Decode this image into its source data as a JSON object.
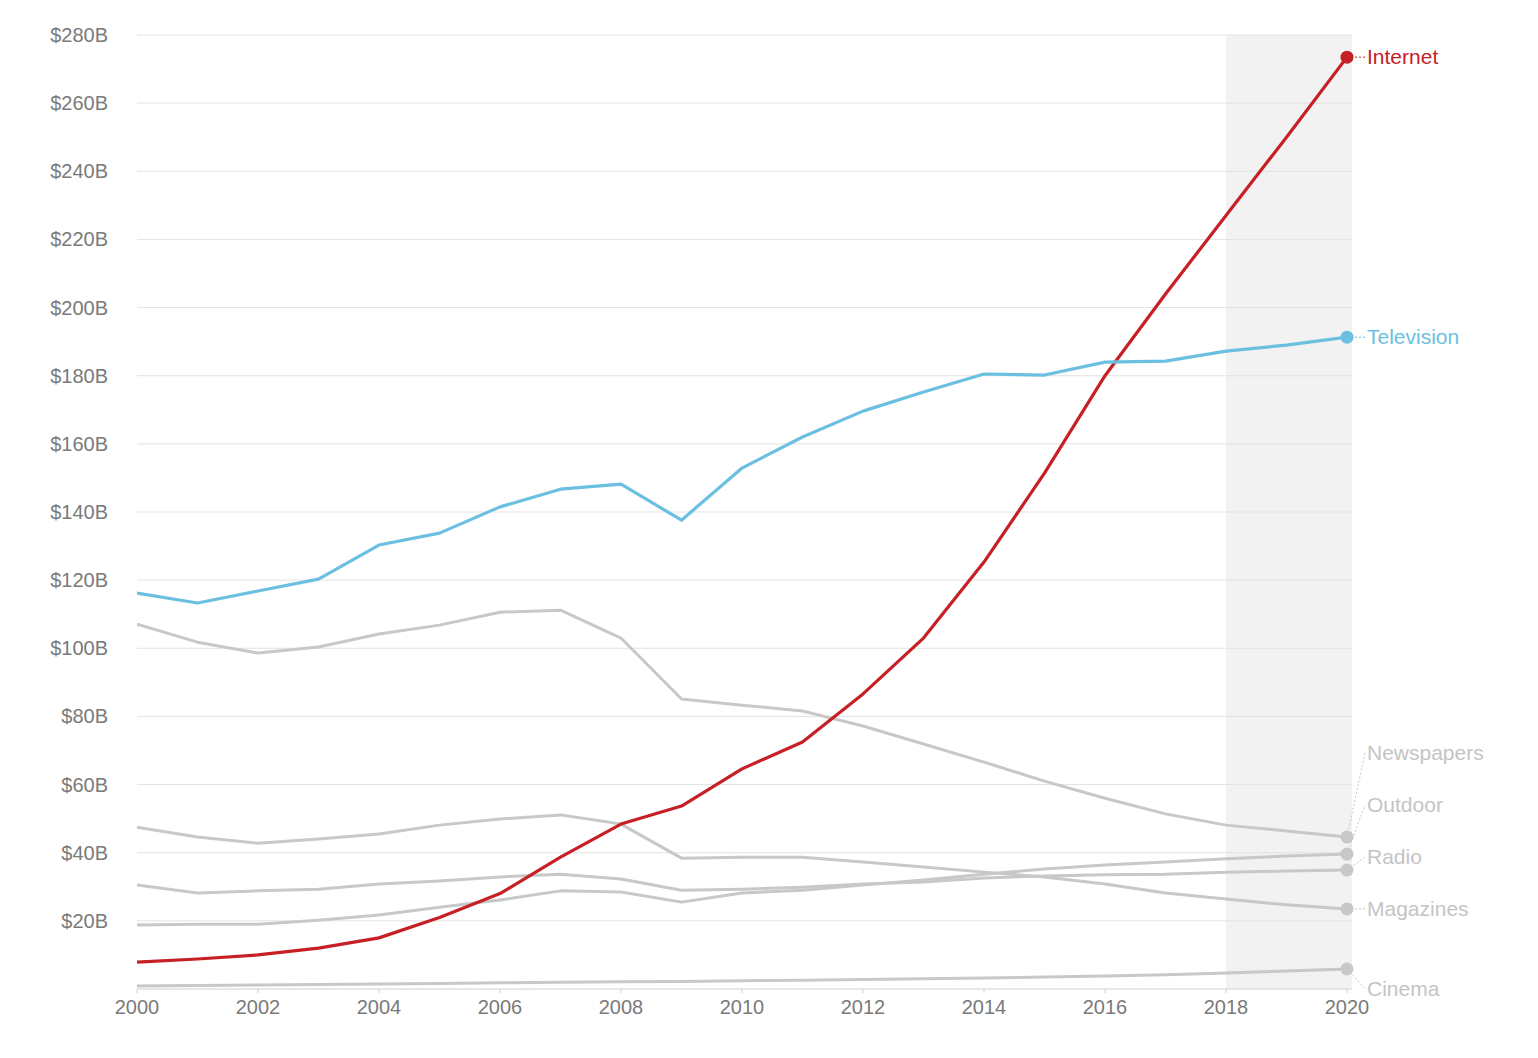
{
  "chart_data": {
    "type": "line",
    "x": [
      2000,
      2001,
      2002,
      2003,
      2004,
      2005,
      2006,
      2007,
      2008,
      2009,
      2010,
      2011,
      2012,
      2013,
      2014,
      2015,
      2016,
      2017,
      2018,
      2019,
      2020
    ],
    "xlim": [
      2000,
      2020
    ],
    "xticks": [
      2000,
      2002,
      2004,
      2006,
      2008,
      2010,
      2012,
      2014,
      2016,
      2018,
      2020
    ],
    "ylim": [
      0,
      280
    ],
    "yticks": [
      {
        "value": 20,
        "label": "$20B"
      },
      {
        "value": 40,
        "label": "$40B"
      },
      {
        "value": 60,
        "label": "$60B"
      },
      {
        "value": 80,
        "label": "$80B"
      },
      {
        "value": 100,
        "label": "$100B"
      },
      {
        "value": 120,
        "label": "$120B"
      },
      {
        "value": 140,
        "label": "$140B"
      },
      {
        "value": 160,
        "label": "$160B"
      },
      {
        "value": 180,
        "label": "$180B"
      },
      {
        "value": 200,
        "label": "$200B"
      },
      {
        "value": 220,
        "label": "$220B"
      },
      {
        "value": 240,
        "label": "$240B"
      },
      {
        "value": 260,
        "label": "$260B"
      },
      {
        "value": 280,
        "label": "$280B"
      }
    ],
    "grid": true,
    "shaded_x": [
      2018,
      2020
    ],
    "series": [
      {
        "name": "Internet",
        "color": "#c62026",
        "values": [
          7.9,
          8.8,
          10,
          12,
          15,
          21,
          28,
          38.7,
          48.4,
          53.7,
          64.6,
          72.5,
          86.6,
          103,
          125.3,
          151.4,
          180,
          204,
          227,
          250,
          273.5
        ]
      },
      {
        "name": "Television",
        "color": "#6bbfe0",
        "values": [
          116.2,
          113.3,
          116.8,
          120.3,
          130.3,
          133.8,
          141.5,
          146.7,
          148.2,
          137.6,
          152.9,
          162,
          169.6,
          175.2,
          180.5,
          180.2,
          184,
          184.3,
          187.2,
          189,
          191.3
        ]
      },
      {
        "name": "Newspapers",
        "color": "#c8c8c8",
        "values": [
          107.1,
          101.8,
          98.6,
          100.4,
          104.2,
          106.8,
          110.6,
          111.2,
          103,
          85.1,
          83.3,
          81.6,
          77.2,
          71.9,
          66.6,
          61,
          56,
          51.4,
          48.1,
          46.4,
          44.6
        ]
      },
      {
        "name": "Outdoor",
        "color": "#c8c8c8",
        "values": [
          18.8,
          19,
          19,
          20.2,
          21.7,
          24,
          26.1,
          28.8,
          28.5,
          25.5,
          28.2,
          29,
          30.5,
          32,
          33.7,
          35.2,
          36.4,
          37.3,
          38.2,
          39,
          39.6
        ]
      },
      {
        "name": "Radio",
        "color": "#c8c8c8",
        "values": [
          30.5,
          28.2,
          28.8,
          29.3,
          30.8,
          31.7,
          32.9,
          33.7,
          32.3,
          29,
          29.3,
          29.9,
          30.8,
          31.4,
          32.6,
          33.2,
          33.5,
          33.7,
          34.3,
          34.6,
          34.9
        ]
      },
      {
        "name": "Magazines",
        "color": "#c8c8c8",
        "values": [
          47.5,
          44.6,
          42.8,
          44,
          45.5,
          48.1,
          49.9,
          51.1,
          48.4,
          38.4,
          38.7,
          38.7,
          37.3,
          35.8,
          34.3,
          32.9,
          30.8,
          28.2,
          26.4,
          24.7,
          23.5
        ]
      },
      {
        "name": "Cinema",
        "color": "#c8c8c8",
        "values": [
          0.9,
          1.0,
          1.2,
          1.3,
          1.5,
          1.6,
          1.8,
          2.0,
          2.1,
          2.2,
          2.4,
          2.6,
          2.8,
          3.0,
          3.2,
          3.5,
          3.8,
          4.2,
          4.7,
          5.3,
          5.9
        ]
      }
    ]
  }
}
